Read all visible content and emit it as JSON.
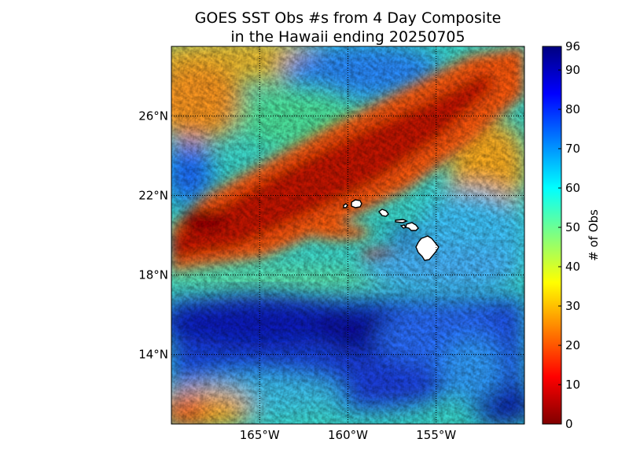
{
  "title_line1": "GOES SST Obs #s from 4 Day Composite",
  "title_line2": "in the Hawaii ending 20250705",
  "map": {
    "lon_range": [
      -170,
      -150
    ],
    "lat_range": [
      10.5,
      29.5
    ],
    "lon_ticks": [
      {
        "value": -165,
        "label": "165°W"
      },
      {
        "value": -160,
        "label": "160°W"
      },
      {
        "value": -155,
        "label": "155°W"
      }
    ],
    "lat_ticks": [
      {
        "value": 14,
        "label": "14°N"
      },
      {
        "value": 18,
        "label": "18°N"
      },
      {
        "value": 22,
        "label": "22°N"
      },
      {
        "value": 26,
        "label": "26°N"
      }
    ],
    "gridlines": "dotted",
    "colormap": "jet",
    "regions": [
      {
        "name": "low-count diagonal band",
        "obs": 12
      },
      {
        "name": "northern high-count area",
        "obs": 60
      },
      {
        "name": "southern high-count area",
        "obs": 80
      }
    ],
    "islands": [
      "Kauai",
      "Niihau",
      "Oahu",
      "Molokai",
      "Maui",
      "Lanai",
      "Hawaii"
    ]
  },
  "colorbar": {
    "label": "# of Obs",
    "min": 0,
    "max": 96,
    "ticks": [
      0,
      10,
      20,
      30,
      40,
      50,
      60,
      70,
      80,
      90,
      96
    ],
    "colors": [
      "#800000",
      "#ff0000",
      "#ff8000",
      "#ffff00",
      "#80ff80",
      "#00ffff",
      "#0080ff",
      "#0000ff",
      "#000080"
    ]
  }
}
